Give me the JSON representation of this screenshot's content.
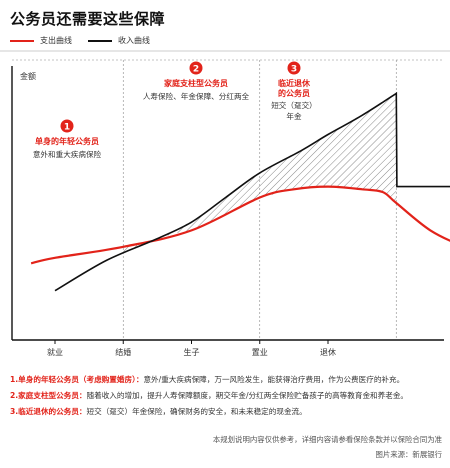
{
  "title": "公务员还需要这些保障",
  "legend": [
    {
      "label": "支出曲线",
      "color": "#e2231a"
    },
    {
      "label": "收入曲线",
      "color": "#111111"
    }
  ],
  "ylabel": "金额",
  "stages": [
    {
      "num": "1",
      "title": "单身的年轻公务员",
      "desc": [
        "意外和重大疾病保险"
      ]
    },
    {
      "num": "2",
      "title": "家庭支柱型公务员",
      "desc": [
        "人寿保险、年金保障、分红两全"
      ]
    },
    {
      "num": "3",
      "title": "临近退休的公务员",
      "desc": [
        "短交（趸交）",
        "年金"
      ]
    }
  ],
  "chart_data": {
    "type": "line",
    "title": "公务员还需要这些保障",
    "ylabel": "金额",
    "xlabel": "",
    "categories": [
      "就业",
      "结婚",
      "生子",
      "置业",
      "退休"
    ],
    "x_range": [
      0,
      7
    ],
    "ylim": [
      0,
      100
    ],
    "grid": false,
    "legend_position": "top-left",
    "series": [
      {
        "name": "支出曲线",
        "color": "#e2231a",
        "x": [
          -0.35,
          0,
          1,
          2,
          3,
          3.5,
          4,
          4.5,
          4.8,
          5,
          5.5,
          6,
          6.5,
          7
        ],
        "y": [
          28,
          30,
          34,
          40,
          52,
          55,
          56,
          55,
          54,
          50,
          40,
          34,
          30,
          30
        ]
      },
      {
        "name": "收入曲线",
        "color": "#111111",
        "x": [
          0,
          0.75,
          1.5,
          2,
          2.5,
          3,
          3.6,
          4,
          4.5,
          5,
          5.01,
          7
        ],
        "y": [
          18,
          29,
          37,
          43,
          52,
          61,
          69,
          75,
          82,
          90,
          56,
          56
        ]
      }
    ]
  },
  "notes": [
    {
      "key": "1.单身的年轻公务员（考虑购置婚房）：",
      "text": "意外/重大疾病保障，万一风险发生，能获得治疗费用，作为公费医疗的补充。"
    },
    {
      "key": "2.家庭支柱型公务员：",
      "text": "随着收入的增加，提升人寿保障额度，期交年金/分红两全保险贮备孩子的高等教育金和养老金。"
    },
    {
      "key": "3.临近退休的公务员：",
      "text": "短交（趸交）年金保险，确保财务的安全，和未来稳定的现金流。"
    }
  ],
  "footer": {
    "disclaimer": "本规划说明内容仅供参考，详细内容请参看保险条款并以保险合同为准",
    "source": "图片来源：新展银行"
  }
}
